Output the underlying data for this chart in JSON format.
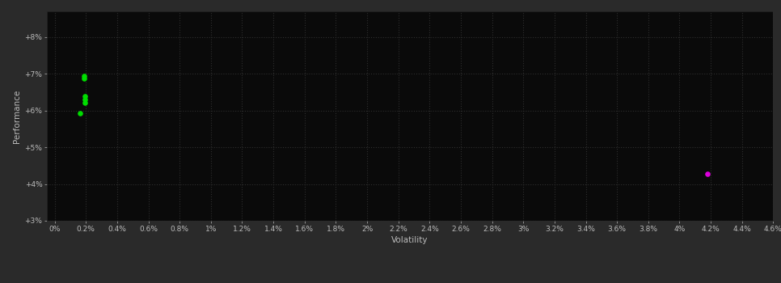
{
  "background_color": "#2a2a2a",
  "plot_bg_color": "#0a0a0a",
  "grid_color": "#2e2e2e",
  "text_color": "#bbbbbb",
  "xlabel": "Volatility",
  "ylabel": "Performance",
  "x_ticks": [
    0,
    0.2,
    0.4,
    0.6,
    0.8,
    1.0,
    1.2,
    1.4,
    1.6,
    1.8,
    2.0,
    2.2,
    2.4,
    2.6,
    2.8,
    3.0,
    3.2,
    3.4,
    3.6,
    3.8,
    4.0,
    4.2,
    4.4,
    4.6
  ],
  "x_tick_labels": [
    "0%",
    "0.2%",
    "0.4%",
    "0.6%",
    "0.8%",
    "1%",
    "1.2%",
    "1.4%",
    "1.6%",
    "1.8%",
    "2%",
    "2.2%",
    "2.4%",
    "2.6%",
    "2.8%",
    "3%",
    "3.2%",
    "3.4%",
    "3.6%",
    "3.8%",
    "4%",
    "4.2%",
    "4.4%",
    "4.6%"
  ],
  "y_ticks": [
    3,
    4,
    5,
    6,
    7,
    8
  ],
  "y_tick_labels": [
    "+3%",
    "+4%",
    "+5%",
    "+6%",
    "+7%",
    "+8%"
  ],
  "xlim": [
    -0.05,
    4.6
  ],
  "ylim": [
    3.0,
    8.7
  ],
  "green_points": [
    [
      0.19,
      6.87
    ],
    [
      0.19,
      6.95
    ],
    [
      0.195,
      6.22
    ],
    [
      0.195,
      6.3
    ],
    [
      0.195,
      6.38
    ],
    [
      0.165,
      5.93
    ]
  ],
  "magenta_points": [
    [
      4.18,
      4.27
    ]
  ],
  "green_color": "#00dd00",
  "magenta_color": "#dd00dd",
  "point_size": 14
}
